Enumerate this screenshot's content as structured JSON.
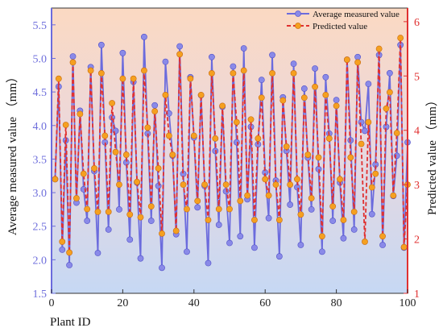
{
  "chart_data": {
    "type": "line",
    "xlabel": "Plant ID",
    "ylabel_left": "Average measured value （mm）",
    "ylabel_right": "Predicted value （mm）",
    "xlim": [
      0,
      100
    ],
    "ylim_left": [
      1.5,
      5.75
    ],
    "ylim_right": [
      1,
      6.25
    ],
    "x_ticks": [
      "0",
      "20",
      "40",
      "60",
      "80",
      "100"
    ],
    "y_left_ticks": [
      "1.5",
      "2.0",
      "2.5",
      "3.0",
      "3.5",
      "4.0",
      "4.5",
      "5.0",
      "5.5"
    ],
    "y_right_ticks": [
      "1",
      "2",
      "3",
      "4",
      "5",
      "6"
    ],
    "grid": false,
    "legend_position": "top-right",
    "background": "vertical gradient from peach (top) to light blue (bottom)",
    "series": [
      {
        "name": "Average measured value",
        "axis": "left",
        "color": "#6b6bdd",
        "marker_color": "#8a8ae8",
        "x": [
          1,
          2,
          3,
          4,
          5,
          6,
          7,
          8,
          9,
          10,
          11,
          12,
          13,
          14,
          15,
          16,
          17,
          18,
          19,
          20,
          21,
          22,
          23,
          24,
          25,
          26,
          27,
          28,
          29,
          30,
          31,
          32,
          33,
          34,
          35,
          36,
          37,
          38,
          39,
          40,
          41,
          42,
          43,
          44,
          45,
          46,
          47,
          48,
          49,
          50,
          51,
          52,
          53,
          54,
          55,
          56,
          57,
          58,
          59,
          60,
          61,
          62,
          63,
          64,
          65,
          66,
          67,
          68,
          69,
          70,
          71,
          72,
          73,
          74,
          75,
          76,
          77,
          78,
          79,
          80,
          81,
          82,
          83,
          84,
          85,
          86,
          87,
          88,
          89,
          90,
          91,
          92,
          93,
          94,
          95,
          96,
          97,
          98,
          99,
          100
        ],
        "values": [
          3.2,
          4.58,
          2.15,
          3.78,
          1.92,
          5.03,
          2.85,
          4.22,
          3.05,
          2.58,
          4.87,
          3.32,
          2.1,
          5.2,
          3.75,
          2.45,
          4.12,
          3.92,
          2.75,
          5.08,
          3.45,
          2.3,
          4.65,
          3.15,
          2.02,
          5.32,
          3.88,
          2.58,
          4.3,
          3.1,
          1.88,
          4.95,
          4.18,
          3.55,
          2.38,
          5.18,
          3.28,
          2.12,
          4.72,
          3.82,
          2.78,
          4.45,
          3.1,
          1.95,
          5.02,
          3.62,
          2.52,
          4.28,
          3.02,
          2.25,
          4.88,
          3.75,
          2.35,
          5.15,
          2.9,
          3.98,
          2.18,
          3.72,
          4.68,
          3.3,
          2.62,
          5.05,
          3.18,
          2.05,
          4.42,
          3.62,
          2.82,
          4.92,
          3.08,
          2.22,
          4.55,
          3.52,
          2.75,
          4.85,
          3.35,
          2.12,
          4.72,
          3.88,
          2.58,
          4.38,
          3.15,
          2.32,
          4.98,
          3.78,
          2.45,
          5.02,
          4.05,
          3.92,
          4.62,
          2.68,
          3.42,
          5.05,
          2.22,
          3.98,
          4.78,
          2.95,
          3.55,
          5.2,
          2.18,
          3.75
        ]
      },
      {
        "name": "Predicted value",
        "axis": "right",
        "color": "#e03030",
        "marker_color": "#f5a020",
        "x": [
          1,
          2,
          3,
          4,
          5,
          6,
          7,
          8,
          9,
          10,
          11,
          12,
          13,
          14,
          15,
          16,
          17,
          18,
          19,
          20,
          21,
          22,
          23,
          24,
          25,
          26,
          27,
          28,
          29,
          30,
          31,
          32,
          33,
          34,
          35,
          36,
          37,
          38,
          39,
          40,
          41,
          42,
          43,
          44,
          45,
          46,
          47,
          48,
          49,
          50,
          51,
          52,
          53,
          54,
          55,
          56,
          57,
          58,
          59,
          60,
          61,
          62,
          63,
          64,
          65,
          66,
          67,
          68,
          69,
          70,
          71,
          72,
          73,
          74,
          75,
          76,
          77,
          78,
          79,
          80,
          81,
          82,
          83,
          84,
          85,
          86,
          87,
          88,
          89,
          90,
          91,
          92,
          93,
          94,
          95,
          96,
          97,
          98,
          99,
          100
        ],
        "values": [
          3.1,
          4.95,
          1.95,
          4.1,
          1.75,
          5.25,
          2.75,
          4.3,
          3.2,
          2.55,
          5.1,
          3.3,
          2.5,
          5.05,
          3.9,
          2.5,
          4.5,
          3.6,
          3.0,
          4.95,
          3.55,
          2.45,
          4.95,
          3.05,
          2.4,
          5.1,
          4.05,
          2.6,
          4.35,
          3.3,
          2.1,
          4.65,
          3.9,
          3.55,
          2.15,
          5.4,
          3.0,
          2.55,
          4.95,
          3.9,
          2.7,
          4.65,
          3.0,
          2.35,
          5.05,
          3.85,
          2.55,
          4.45,
          3.0,
          2.55,
          5.05,
          4.15,
          2.7,
          5.1,
          2.8,
          4.2,
          2.35,
          3.85,
          4.6,
          3.1,
          2.8,
          5.05,
          3.0,
          2.35,
          4.55,
          3.7,
          3.0,
          5.05,
          3.1,
          2.45,
          4.6,
          3.55,
          2.75,
          4.8,
          3.5,
          2.05,
          4.65,
          3.85,
          2.6,
          4.45,
          3.1,
          2.35,
          5.3,
          3.5,
          2.5,
          5.25,
          3.75,
          1.95,
          4.15,
          2.95,
          3.2,
          5.5,
          2.05,
          4.4,
          4.7,
          2.8,
          3.95,
          5.7,
          1.85,
          3.0
        ]
      }
    ]
  }
}
